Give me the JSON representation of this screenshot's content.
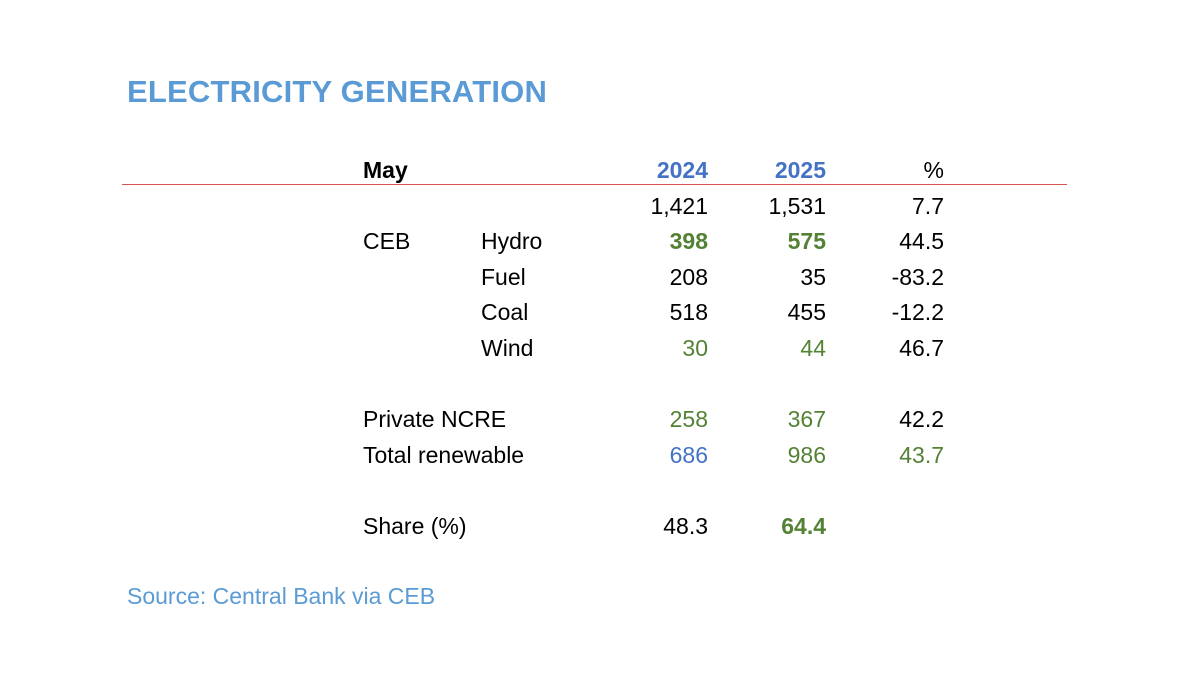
{
  "title": "ELECTRICITY GENERATION",
  "source": "Source: Central Bank via CEB",
  "colors": {
    "title_blue": "#5b9bd5",
    "header_blue": "#4472c4",
    "green": "#548235",
    "rule_red": "#d9534f",
    "black": "#000000"
  },
  "chart_data": {
    "type": "table",
    "headers": {
      "period": "May",
      "col2024": "2024",
      "col2025": "2025",
      "pct": "%"
    },
    "rows": [
      {
        "group": "",
        "item": "",
        "y2024": "1,421",
        "y2025": "1,531",
        "pct": "7.7",
        "style": {
          "y2024": "black",
          "y2025": "black",
          "pct": "black"
        }
      },
      {
        "group": "CEB",
        "item": "Hydro",
        "y2024": "398",
        "y2025": "575",
        "pct": "44.5",
        "style": {
          "y2024": "green-bold",
          "y2025": "green-bold",
          "pct": "black"
        }
      },
      {
        "group": "",
        "item": "Fuel",
        "y2024": "208",
        "y2025": "35",
        "pct": "-83.2",
        "style": {
          "y2024": "black",
          "y2025": "black",
          "pct": "black"
        }
      },
      {
        "group": "",
        "item": "Coal",
        "y2024": "518",
        "y2025": "455",
        "pct": "-12.2",
        "style": {
          "y2024": "black",
          "y2025": "black",
          "pct": "black"
        }
      },
      {
        "group": "",
        "item": "Wind",
        "y2024": "30",
        "y2025": "44",
        "pct": "46.7",
        "style": {
          "y2024": "green",
          "y2025": "green",
          "pct": "black"
        }
      },
      {
        "group": "Private NCRE",
        "item": "",
        "y2024": "258",
        "y2025": "367",
        "pct": "42.2",
        "style": {
          "y2024": "green",
          "y2025": "green",
          "pct": "black"
        }
      },
      {
        "group": "Total renewable",
        "item": "",
        "y2024": "686",
        "y2025": "986",
        "pct": "43.7",
        "style": {
          "y2024": "blue",
          "y2025": "green",
          "pct": "green"
        }
      },
      {
        "group": "Share (%)",
        "item": "",
        "y2024": "48.3",
        "y2025": "64.4",
        "pct": "",
        "style": {
          "y2024": "black",
          "y2025": "green-bold",
          "pct": "black"
        }
      }
    ]
  }
}
